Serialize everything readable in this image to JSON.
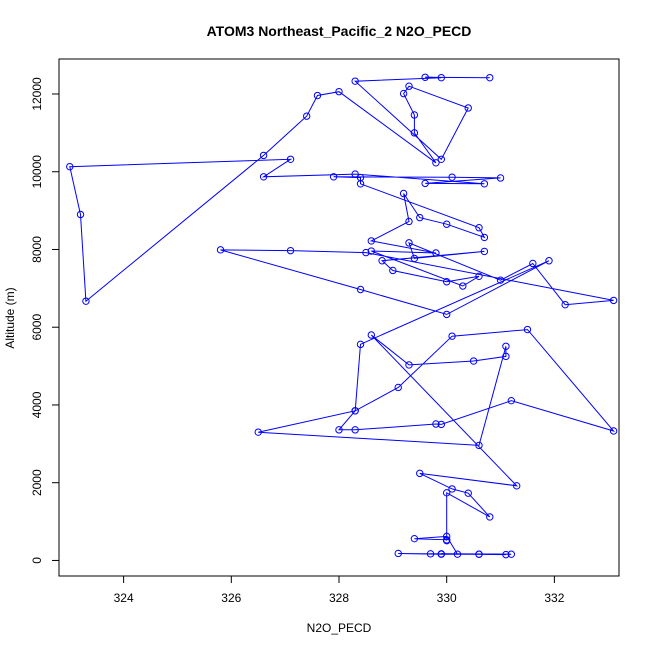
{
  "chart_data": {
    "type": "line",
    "title": "ATOM3 Northeast_Pacific_2 N2O_PECD",
    "xlabel": "N2O_PECD",
    "ylabel": "Altitude (m)",
    "xlim": [
      322.8,
      333.2
    ],
    "ylim": [
      -400,
      12900
    ],
    "xticks": [
      324,
      326,
      328,
      330,
      332
    ],
    "yticks": [
      0,
      2000,
      4000,
      6000,
      8000,
      10000,
      12000
    ],
    "grid": false,
    "legend": "none",
    "markers": "open-circle",
    "color": "#0000ff",
    "series": [
      {
        "x": [
          330.8,
          329.6,
          329.9,
          328.3,
          329.9,
          330.4,
          329.3,
          329.2,
          329.4,
          329.4,
          329.8,
          328.0,
          327.6,
          327.4,
          326.6,
          323.3,
          323.2,
          323.0,
          327.1,
          326.6,
          328.3,
          330.7,
          329.6,
          331.0,
          330.1,
          327.9,
          328.4,
          328.4,
          330.6,
          330.7,
          330.0,
          329.5,
          329.2,
          329.3,
          328.6,
          329.8,
          328.6,
          330.3,
          330.6,
          330.0,
          329.0,
          328.8,
          330.7,
          329.4,
          329.3,
          331.0,
          331.6,
          332.2,
          333.1,
          328.5,
          327.1,
          325.8,
          328.4,
          330.0,
          331.9,
          328.4,
          328.3,
          329.1,
          330.1,
          331.5,
          333.1,
          331.2,
          329.9,
          329.8,
          328.3,
          328.0,
          328.3,
          326.5,
          330.6,
          331.1,
          331.1,
          330.5,
          329.3,
          328.6,
          331.3,
          329.5,
          330.1,
          330.4,
          330.8,
          330.0,
          330.0,
          330.0,
          329.4,
          330.0,
          330.2,
          329.9,
          331.2,
          330.6,
          330.6,
          329.9,
          329.1,
          331.1,
          329.7
        ],
        "y": [
          12420,
          12430,
          12420,
          12330,
          10320,
          11640,
          12200,
          12010,
          11460,
          11000,
          10230,
          12060,
          11960,
          11430,
          10420,
          6670,
          8900,
          10130,
          10320,
          9870,
          9940,
          9690,
          9700,
          9840,
          9860,
          9870,
          9850,
          9690,
          8560,
          8310,
          8650,
          8820,
          9440,
          8720,
          8220,
          7910,
          7960,
          7060,
          7310,
          7170,
          7460,
          7710,
          7950,
          7770,
          8170,
          7210,
          7640,
          6580,
          6690,
          7920,
          7970,
          7990,
          6970,
          6330,
          7710,
          5560,
          3850,
          4450,
          5770,
          5940,
          3330,
          4110,
          3500,
          3510,
          3360,
          3360,
          3850,
          3300,
          2960,
          5510,
          5250,
          5130,
          5030,
          5800,
          1920,
          2240,
          1840,
          1730,
          1120,
          1740,
          510,
          530,
          560,
          620,
          160,
          170,
          160,
          160,
          160,
          160,
          180,
          150,
          170
        ]
      }
    ]
  }
}
